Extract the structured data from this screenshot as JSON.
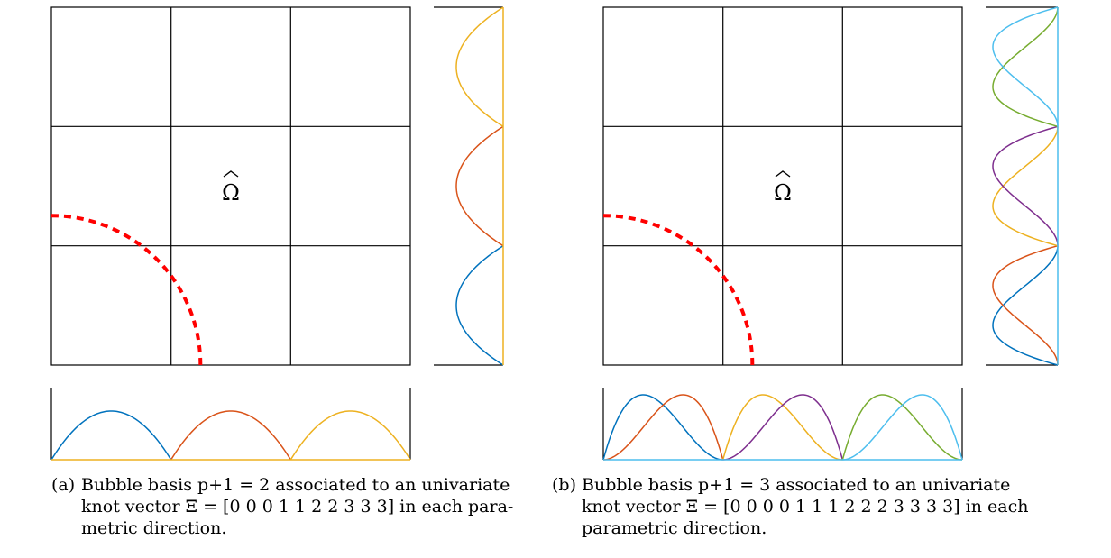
{
  "panels": [
    {
      "id": "a",
      "domain_label": "Ω",
      "order_p_plus_1": 2,
      "caption_tag": "(a)",
      "caption_lines": [
        "Bubble basis p+1 = 2 associated to an univariate",
        "knot vector Ξ = [0 0 0 1 1 2 2 3 3 3] in each para-",
        "metric direction."
      ],
      "colors": [
        "#0072BD",
        "#D95319",
        "#EDB120"
      ]
    },
    {
      "id": "b",
      "domain_label": "Ω",
      "order_p_plus_1": 3,
      "caption_tag": "(b)",
      "caption_lines": [
        "Bubble basis p+1 = 3 associated to an univariate",
        "knot vector Ξ = [0 0 0 0 1 1 1 2 2 2 3 3 3 3] in each",
        "parametric direction."
      ],
      "colors": [
        "#0072BD",
        "#D95319",
        "#EDB120",
        "#7E2F8E",
        "#77AC30",
        "#4DBEEE"
      ]
    }
  ],
  "boundary_color": "#FF0000"
}
